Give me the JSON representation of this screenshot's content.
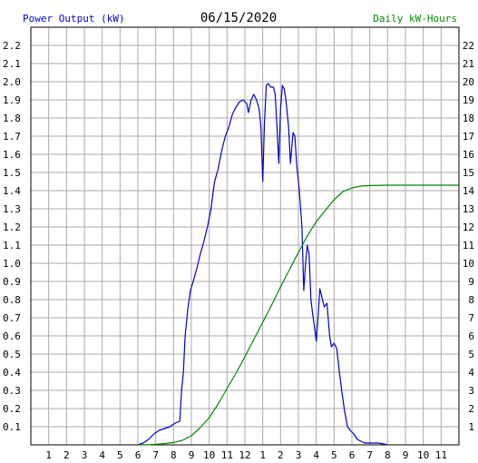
{
  "chart_data": {
    "type": "line",
    "title": "06/15/2020",
    "y_left_label": "Power Output (kW)",
    "y_right_label": "Daily kW-Hours",
    "colors": {
      "power": "#0000cc",
      "energy": "#008800",
      "grid": "#aaaaaa",
      "axis_text": "#000000",
      "right_label": "#008800",
      "left_label": "#0000cc"
    },
    "grid": true,
    "x_ticks": [
      "1",
      "2",
      "3",
      "4",
      "5",
      "6",
      "7",
      "8",
      "9",
      "10",
      "11",
      "12",
      "1",
      "2",
      "3",
      "4",
      "5",
      "6",
      "7",
      "8",
      "9",
      "10",
      "11"
    ],
    "y_left_ticks": [
      "0.1",
      "0.2",
      "0.3",
      "0.4",
      "0.5",
      "0.6",
      "0.7",
      "0.8",
      "0.9",
      "1.0",
      "1.1",
      "1.2",
      "1.3",
      "1.4",
      "1.5",
      "1.6",
      "1.7",
      "1.8",
      "1.9",
      "2.0",
      "2.1",
      "2.2"
    ],
    "y_right_ticks": [
      "1",
      "2",
      "3",
      "4",
      "5",
      "6",
      "7",
      "8",
      "9",
      "10",
      "11",
      "12",
      "13",
      "14",
      "15",
      "16",
      "17",
      "18",
      "19",
      "20",
      "21",
      "22"
    ],
    "x_range_hours": [
      0,
      24
    ],
    "y_left_range": [
      0,
      2.3
    ],
    "y_right_range": [
      0,
      23
    ],
    "series": [
      {
        "name": "Power Output (kW)",
        "axis": "left",
        "points": [
          [
            6.0,
            0.0
          ],
          [
            6.3,
            0.01
          ],
          [
            6.6,
            0.03
          ],
          [
            6.9,
            0.06
          ],
          [
            7.2,
            0.08
          ],
          [
            7.5,
            0.09
          ],
          [
            7.8,
            0.1
          ],
          [
            8.1,
            0.12
          ],
          [
            8.35,
            0.13
          ],
          [
            8.45,
            0.3
          ],
          [
            8.55,
            0.4
          ],
          [
            8.65,
            0.6
          ],
          [
            8.8,
            0.75
          ],
          [
            8.95,
            0.85
          ],
          [
            9.1,
            0.9
          ],
          [
            9.3,
            0.97
          ],
          [
            9.5,
            1.05
          ],
          [
            9.7,
            1.12
          ],
          [
            9.9,
            1.2
          ],
          [
            10.1,
            1.3
          ],
          [
            10.3,
            1.45
          ],
          [
            10.5,
            1.52
          ],
          [
            10.7,
            1.62
          ],
          [
            10.9,
            1.7
          ],
          [
            11.1,
            1.75
          ],
          [
            11.3,
            1.82
          ],
          [
            11.5,
            1.86
          ],
          [
            11.7,
            1.89
          ],
          [
            11.9,
            1.9
          ],
          [
            12.1,
            1.88
          ],
          [
            12.2,
            1.83
          ],
          [
            12.35,
            1.9
          ],
          [
            12.5,
            1.93
          ],
          [
            12.65,
            1.9
          ],
          [
            12.8,
            1.85
          ],
          [
            12.9,
            1.75
          ],
          [
            13.0,
            1.45
          ],
          [
            13.1,
            1.78
          ],
          [
            13.2,
            1.98
          ],
          [
            13.3,
            1.99
          ],
          [
            13.45,
            1.97
          ],
          [
            13.6,
            1.97
          ],
          [
            13.7,
            1.93
          ],
          [
            13.8,
            1.75
          ],
          [
            13.9,
            1.55
          ],
          [
            14.0,
            1.85
          ],
          [
            14.1,
            1.98
          ],
          [
            14.2,
            1.96
          ],
          [
            14.3,
            1.9
          ],
          [
            14.45,
            1.75
          ],
          [
            14.55,
            1.55
          ],
          [
            14.7,
            1.72
          ],
          [
            14.8,
            1.7
          ],
          [
            14.9,
            1.55
          ],
          [
            15.05,
            1.4
          ],
          [
            15.2,
            1.2
          ],
          [
            15.3,
            0.85
          ],
          [
            15.4,
            1.0
          ],
          [
            15.5,
            1.1
          ],
          [
            15.6,
            1.05
          ],
          [
            15.7,
            0.8
          ],
          [
            15.8,
            0.72
          ],
          [
            15.9,
            0.65
          ],
          [
            16.0,
            0.57
          ],
          [
            16.1,
            0.7
          ],
          [
            16.2,
            0.86
          ],
          [
            16.3,
            0.82
          ],
          [
            16.45,
            0.76
          ],
          [
            16.6,
            0.78
          ],
          [
            16.75,
            0.6
          ],
          [
            16.85,
            0.54
          ],
          [
            17.0,
            0.56
          ],
          [
            17.15,
            0.53
          ],
          [
            17.3,
            0.4
          ],
          [
            17.45,
            0.28
          ],
          [
            17.6,
            0.18
          ],
          [
            17.75,
            0.1
          ],
          [
            17.9,
            0.08
          ],
          [
            18.1,
            0.06
          ],
          [
            18.3,
            0.03
          ],
          [
            18.5,
            0.02
          ],
          [
            18.7,
            0.01
          ],
          [
            19.0,
            0.01
          ],
          [
            19.5,
            0.01
          ],
          [
            20.0,
            0.0
          ]
        ]
      },
      {
        "name": "Daily kW-Hours",
        "axis": "right",
        "points": [
          [
            6.0,
            0.0
          ],
          [
            6.5,
            0.0
          ],
          [
            7.0,
            0.03
          ],
          [
            7.5,
            0.07
          ],
          [
            8.0,
            0.13
          ],
          [
            8.5,
            0.25
          ],
          [
            9.0,
            0.5
          ],
          [
            9.5,
            0.95
          ],
          [
            10.0,
            1.5
          ],
          [
            10.5,
            2.25
          ],
          [
            11.0,
            3.1
          ],
          [
            11.5,
            3.95
          ],
          [
            12.0,
            4.85
          ],
          [
            12.5,
            5.8
          ],
          [
            13.0,
            6.75
          ],
          [
            13.5,
            7.7
          ],
          [
            14.0,
            8.7
          ],
          [
            14.5,
            9.65
          ],
          [
            15.0,
            10.6
          ],
          [
            15.5,
            11.5
          ],
          [
            16.0,
            12.3
          ],
          [
            16.5,
            12.9
          ],
          [
            17.0,
            13.5
          ],
          [
            17.5,
            13.95
          ],
          [
            18.0,
            14.15
          ],
          [
            18.5,
            14.25
          ],
          [
            19.0,
            14.28
          ],
          [
            20.0,
            14.3
          ],
          [
            22.0,
            14.3
          ],
          [
            24.0,
            14.3
          ]
        ]
      }
    ]
  }
}
